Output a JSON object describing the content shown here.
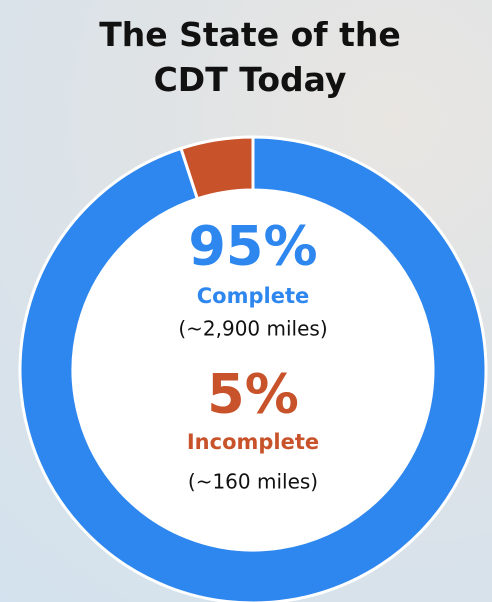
{
  "chart_data": {
    "type": "donut",
    "title": "The State of the CDT Today",
    "categories": [
      "Complete",
      "Incomplete"
    ],
    "values": [
      95,
      5
    ],
    "value_labels": [
      "95%",
      "5%"
    ],
    "notes": [
      "(~2,900 miles)",
      "(~160 miles)"
    ],
    "colors": [
      "#2e86ef",
      "#c8532b"
    ]
  }
}
